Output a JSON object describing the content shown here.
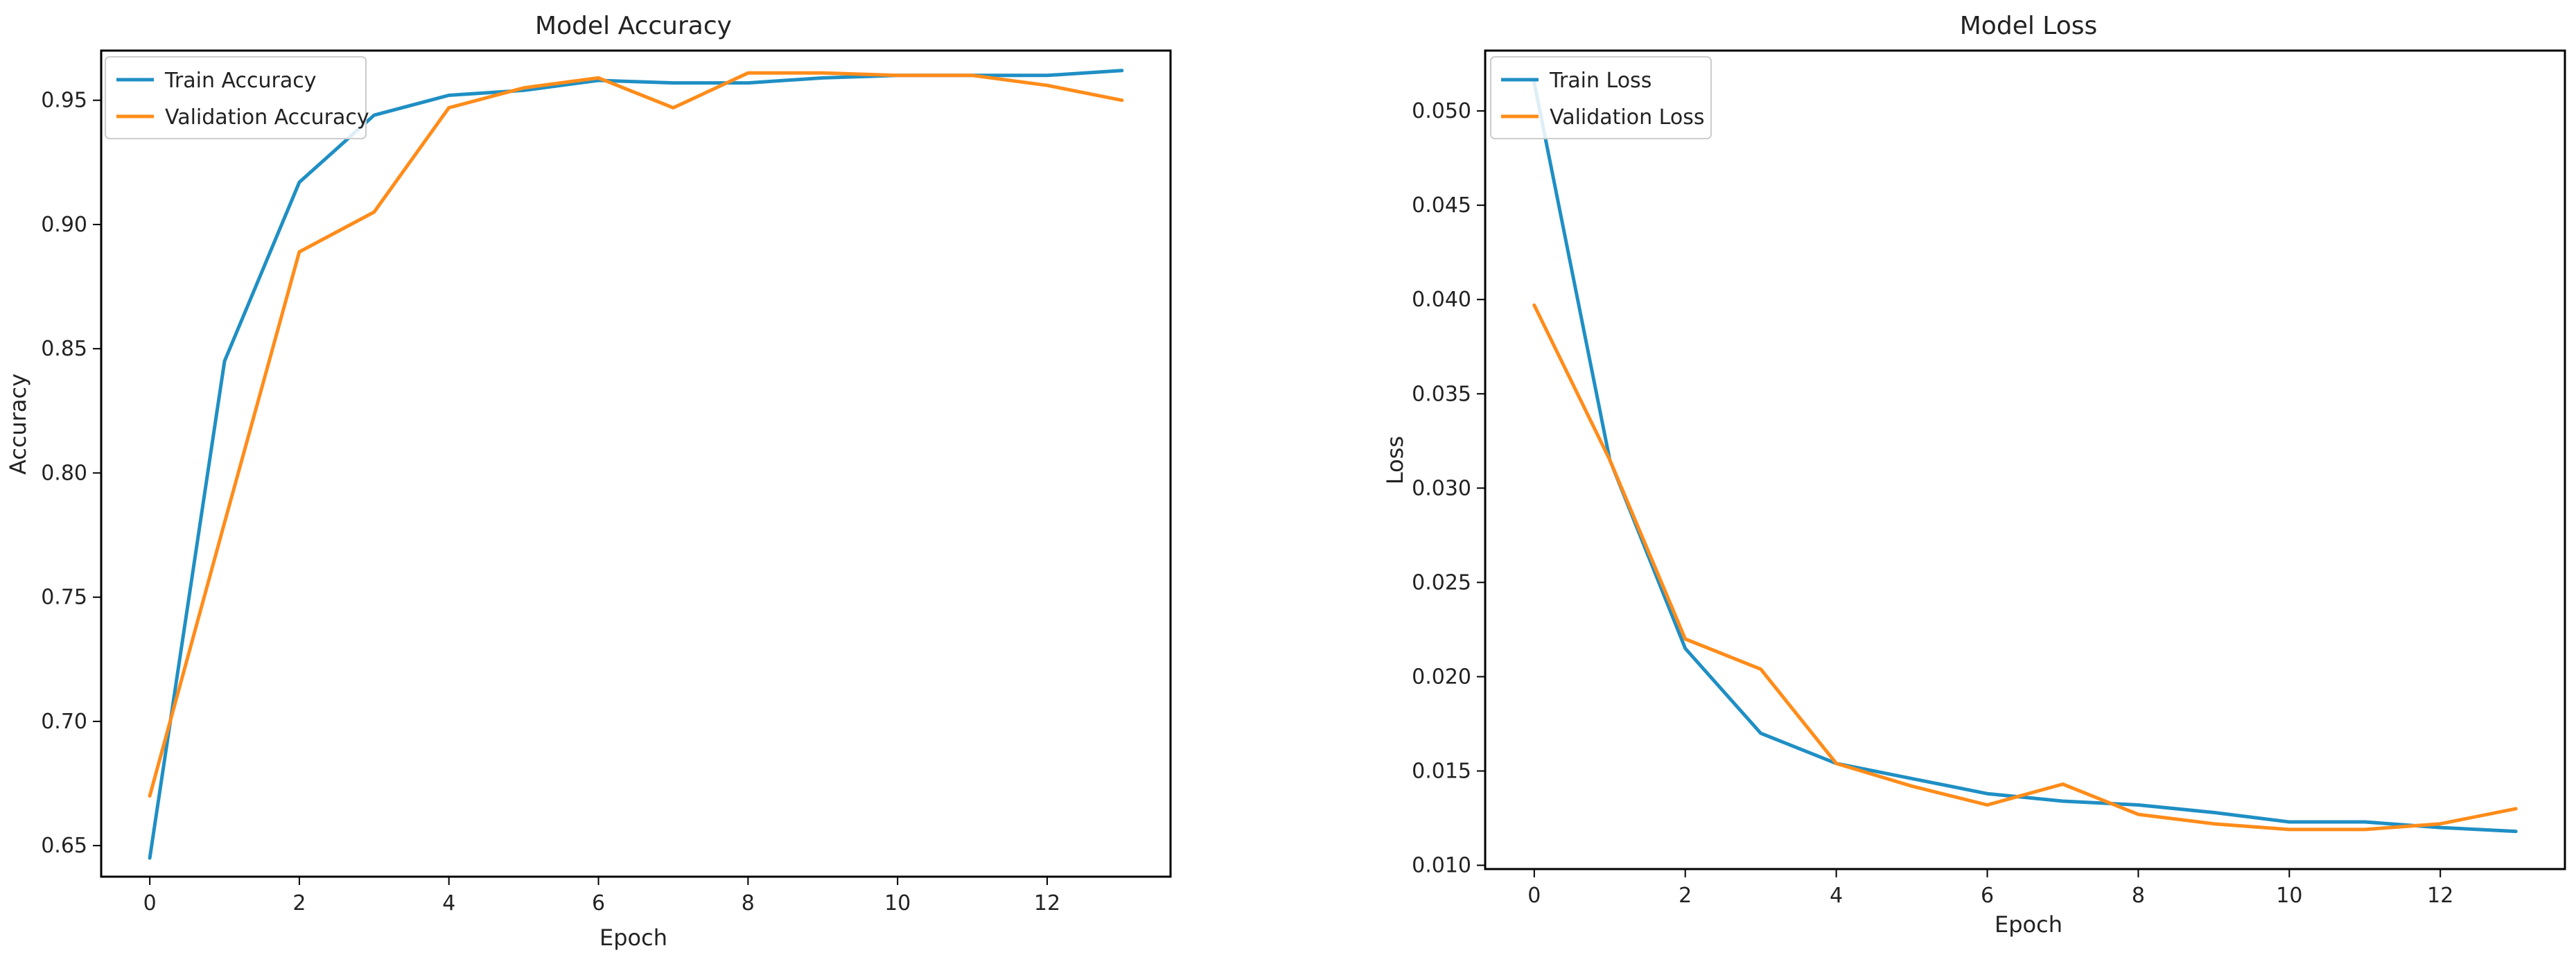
{
  "chart_data": [
    {
      "type": "line",
      "title": "Model Accuracy",
      "xlabel": "Epoch",
      "ylabel": "Accuracy",
      "xlim": [
        -0.65,
        13.65
      ],
      "ylim": [
        0.6375,
        0.97
      ],
      "xticks": [
        0,
        2,
        4,
        6,
        8,
        10,
        12
      ],
      "xtick_labels": [
        "0",
        "2",
        "4",
        "6",
        "8",
        "10",
        "12"
      ],
      "yticks": [
        0.65,
        0.7,
        0.75,
        0.8,
        0.85,
        0.9,
        0.95
      ],
      "ytick_labels": [
        "0.65",
        "0.70",
        "0.75",
        "0.80",
        "0.85",
        "0.90",
        "0.95"
      ],
      "grid": false,
      "legend_position": "top-left",
      "x": [
        0,
        1,
        2,
        3,
        4,
        5,
        6,
        7,
        8,
        9,
        10,
        11,
        12,
        13
      ],
      "series": [
        {
          "name": "Train Accuracy",
          "color": "#1f8fc4",
          "values": [
            0.645,
            0.845,
            0.917,
            0.944,
            0.952,
            0.954,
            0.958,
            0.957,
            0.957,
            0.959,
            0.96,
            0.96,
            0.96,
            0.962
          ]
        },
        {
          "name": "Validation Accuracy",
          "color": "#ff8c1a",
          "values": [
            0.67,
            0.78,
            0.889,
            0.905,
            0.947,
            0.955,
            0.959,
            0.947,
            0.961,
            0.961,
            0.96,
            0.96,
            0.956,
            0.95
          ]
        }
      ]
    },
    {
      "type": "line",
      "title": "Model Loss",
      "xlabel": "Epoch",
      "ylabel": "Loss",
      "xlim": [
        -0.65,
        13.65
      ],
      "ylim": [
        0.0098,
        0.0532
      ],
      "xticks": [
        0,
        2,
        4,
        6,
        8,
        10,
        12
      ],
      "xtick_labels": [
        "0",
        "2",
        "4",
        "6",
        "8",
        "10",
        "12"
      ],
      "yticks": [
        0.01,
        0.015,
        0.02,
        0.025,
        0.03,
        0.035,
        0.04,
        0.045,
        0.05
      ],
      "ytick_labels": [
        "0.010",
        "0.015",
        "0.020",
        "0.025",
        "0.030",
        "0.035",
        "0.040",
        "0.045",
        "0.050"
      ],
      "grid": false,
      "legend_position": "top-left",
      "x": [
        0,
        1,
        2,
        3,
        4,
        5,
        6,
        7,
        8,
        9,
        10,
        11,
        12,
        13
      ],
      "series": [
        {
          "name": "Train Loss",
          "color": "#1f8fc4",
          "values": [
            0.0515,
            0.0315,
            0.0215,
            0.017,
            0.0154,
            0.0146,
            0.0138,
            0.0134,
            0.0132,
            0.0128,
            0.0123,
            0.0123,
            0.012,
            0.0118
          ]
        },
        {
          "name": "Validation Loss",
          "color": "#ff8c1a",
          "values": [
            0.0397,
            0.0315,
            0.022,
            0.0204,
            0.0154,
            0.0142,
            0.0132,
            0.0143,
            0.0127,
            0.0122,
            0.0119,
            0.0119,
            0.0122,
            0.013
          ]
        }
      ]
    }
  ]
}
